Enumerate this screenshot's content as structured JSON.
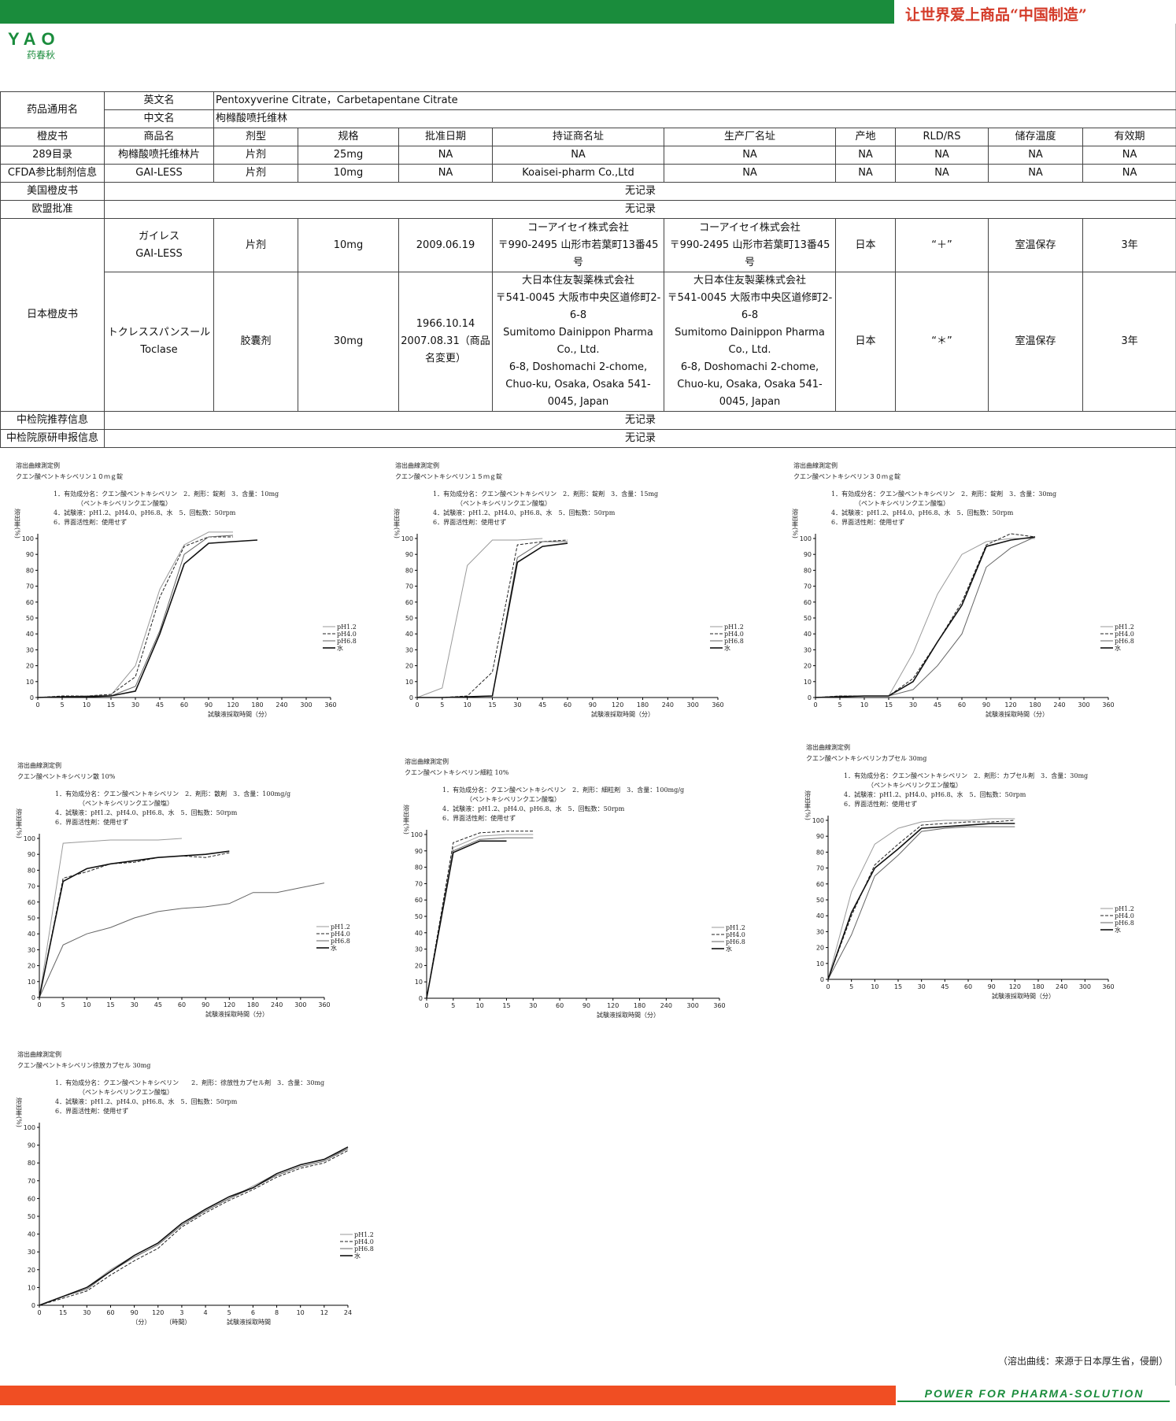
{
  "header": {
    "slogan": "让世界爱上商品“中国制造”",
    "logo_text": "YAO",
    "logo_cn": "药春秋"
  },
  "table": {
    "generic_name_label": "药品通用名",
    "en_label": "英文名",
    "en_value": "Pentoxyverine Citrate，Carbetapentane Citrate",
    "cn_label": "中文名",
    "cn_value": "枸橼酸喷托维林",
    "headers": [
      "橙皮书",
      "商品名",
      "剂型",
      "规格",
      "批准日期",
      "持证商名址",
      "生产厂名址",
      "产地",
      "RLD/RS",
      "储存温度",
      "有效期"
    ],
    "row_289": [
      "289目录",
      "枸橼酸喷托维林片",
      "片剂",
      "25mg",
      "NA",
      "NA",
      "NA",
      "NA",
      "NA",
      "NA",
      "NA"
    ],
    "row_cfda": [
      "CFDA参比制剂信息",
      "GAI-LESS",
      "片剂",
      "10mg",
      "NA",
      "Koaisei-pharm Co.,Ltd",
      "NA",
      "NA",
      "NA",
      "NA",
      "NA"
    ],
    "us_label": "美国橙皮书",
    "us_value": "无记录",
    "eu_label": "欧盟批准",
    "eu_value": "无记录",
    "jp_label": "日本橙皮书",
    "jp_row1": {
      "name": "ガイレス\nGAI-LESS",
      "form": "片剂",
      "spec": "10mg",
      "date": "2009.06.19",
      "holder": "コーアイセイ株式会社\n〒990-2495 山形市若葉町13番45号",
      "maker": "コーアイセイ株式会社\n〒990-2495 山形市若葉町13番45号",
      "origin": "日本",
      "rld": "“＋”",
      "storage": "室温保存",
      "expiry": "3年"
    },
    "jp_row2": {
      "name": "トクレススパンスール\nToclase",
      "form": "胶囊剂",
      "spec": "30mg",
      "date": "1966.10.14\n2007.08.31（商品名変更）",
      "holder": "大日本住友製薬株式会社\n〒541-0045 大阪市中央区道修町2-6-8\nSumitomo Dainippon Pharma Co., Ltd.\n6-8, Doshomachi 2-chome, Chuo-ku, Osaka, Osaka 541-0045, Japan",
      "maker": "大日本住友製薬株式会社\n〒541-0045 大阪市中央区道修町2-6-8\nSumitomo Dainippon Pharma Co., Ltd.\n6-8, Doshomachi 2-chome, Chuo-ku, Osaka, Osaka 541-0045, Japan",
      "origin": "日本",
      "rld": "“＊”",
      "storage": "室温保存",
      "expiry": "3年"
    },
    "nifdc_rec_label": "中检院推荐信息",
    "nifdc_rec_value": "无记录",
    "nifdc_rd_label": "中检院原研申报信息",
    "nifdc_rd_value": "无记录"
  },
  "footnote": "（溶出曲线：来源于日本厚生省，侵删）",
  "footer_tag": "POWER FOR PHARMA-SOLUTION",
  "colors": {
    "green": "#1a8c3c",
    "orange": "#f04e23",
    "slogan_red": "#d43c2a"
  },
  "chart_data": [
    {
      "type": "line",
      "title": "溶出曲線測定例",
      "subtitle": "クエン酸ペントキシベリン１０ｍｇ錠",
      "notes": [
        "1．有効成分名：クエン酸ペントキシベリン　2．剤形：錠剤　3．含量：10mg",
        "（ペントキシベリンクエン酸塩）",
        "4．試験液：pH1.2、pH4.0、pH6.8、水　5．回転数：50rpm",
        "6．界面活性剤：使用せず"
      ],
      "ylabel": "溶出率(%)",
      "xlabel": "試験液採取時間（分）",
      "x": [
        "0",
        "5",
        "10",
        "15",
        "30",
        "45",
        "60",
        "90",
        "120",
        "180",
        "240",
        "300",
        "360"
      ],
      "yticks": [
        0,
        10,
        20,
        30,
        40,
        50,
        60,
        70,
        80,
        90,
        100
      ],
      "series": [
        {
          "name": "pH1.2",
          "values": [
            0,
            0.5,
            1,
            1.5,
            20,
            68,
            96,
            104,
            104,
            null,
            null,
            null,
            null
          ]
        },
        {
          "name": "pH4.0",
          "values": [
            0,
            1,
            1,
            2,
            13,
            63,
            95,
            101,
            101,
            null,
            null,
            null,
            null
          ]
        },
        {
          "name": "pH6.8",
          "values": [
            0,
            0.5,
            1,
            1,
            7,
            42,
            90,
            101,
            102,
            null,
            null,
            null,
            null
          ]
        },
        {
          "name": "水",
          "values": [
            0,
            0.5,
            0.5,
            1,
            4,
            40,
            84,
            97,
            98,
            99,
            null,
            null,
            null
          ]
        }
      ]
    },
    {
      "type": "line",
      "title": "溶出曲線測定例",
      "subtitle": "クエン酸ペントキシベリン１５ｍｇ錠",
      "notes": [
        "1．有効成分名：クエン酸ペントキシベリン　2．剤形：錠剤　3．含量：15mg",
        "（ペントキシベリンクエン酸塩）",
        "4．試験液：pH1.2、pH4.0、pH6.8、水　5．回転数：50rpm",
        "6．界面活性剤：使用せず"
      ],
      "ylabel": "溶出率(%)",
      "xlabel": "試験液採取時間（分）",
      "x": [
        "0",
        "5",
        "10",
        "15",
        "30",
        "45",
        "60",
        "90",
        "120",
        "180",
        "240",
        "300",
        "360"
      ],
      "yticks": [
        0,
        10,
        20,
        30,
        40,
        50,
        60,
        70,
        80,
        90,
        100
      ],
      "series": [
        {
          "name": "pH1.2",
          "values": [
            0,
            6,
            83,
            99,
            99,
            100,
            null,
            null,
            null,
            null,
            null,
            null,
            null
          ]
        },
        {
          "name": "pH4.0",
          "values": [
            0,
            0,
            1,
            16,
            96,
            98,
            99,
            null,
            null,
            null,
            null,
            null,
            null
          ]
        },
        {
          "name": "pH6.8",
          "values": [
            0,
            0,
            0.5,
            1,
            88,
            98,
            98,
            null,
            null,
            null,
            null,
            null,
            null
          ]
        },
        {
          "name": "水",
          "values": [
            0,
            0,
            0.5,
            1,
            85,
            95,
            97,
            null,
            null,
            null,
            null,
            null,
            null
          ]
        }
      ]
    },
    {
      "type": "line",
      "title": "溶出曲線測定例",
      "subtitle": "クエン酸ペントキシベリン３０ｍｇ錠",
      "notes": [
        "1．有効成分名：クエン酸ペントキシベリン　2．剤形：錠剤　3．含量：30mg",
        "（ペントキシベリンクエン酸塩）",
        "4．試験液：pH1.2、pH4.0、pH6.8、水　5．回転数：50rpm",
        "6．界面活性剤：使用せず"
      ],
      "ylabel": "溶出率(%)",
      "xlabel": "試験液採取時間（分）",
      "x": [
        "0",
        "5",
        "10",
        "15",
        "30",
        "45",
        "60",
        "90",
        "120",
        "180",
        "240",
        "300",
        "360"
      ],
      "yticks": [
        0,
        10,
        20,
        30,
        40,
        50,
        60,
        70,
        80,
        90,
        100
      ],
      "series": [
        {
          "name": "pH1.2",
          "values": [
            0,
            1,
            1,
            1,
            28,
            65,
            90,
            98,
            100,
            100,
            null,
            null,
            null
          ]
        },
        {
          "name": "pH4.0",
          "values": [
            0,
            1,
            1,
            1,
            12,
            35,
            60,
            96,
            103,
            101,
            null,
            null,
            null
          ]
        },
        {
          "name": "pH6.8",
          "values": [
            0,
            0.5,
            1,
            1,
            5,
            20,
            40,
            82,
            94,
            101,
            null,
            null,
            null
          ]
        },
        {
          "name": "水",
          "values": [
            0,
            0.5,
            1,
            1,
            10,
            35,
            58,
            95,
            99,
            101,
            null,
            null,
            null
          ]
        }
      ]
    },
    {
      "type": "line",
      "title": "溶出曲線測定例",
      "subtitle": "クエン酸ペントキシベリン散 10%",
      "notes": [
        "1．有効成分名：クエン酸ペントキシベリン　2．剤形：散剤　3．含量：100mg/g",
        "（ペントキシベリンクエン酸塩）",
        "4．試験液：pH1.2、pH4.0、pH6.8、水　5．回転数：50rpm",
        "6．界面活性剤：使用せず"
      ],
      "ylabel": "溶出率(%)",
      "xlabel": "試験液採取時間（分）",
      "x": [
        "0",
        "5",
        "10",
        "15",
        "30",
        "45",
        "60",
        "90",
        "120",
        "180",
        "240",
        "300",
        "360"
      ],
      "yticks": [
        0,
        10,
        20,
        30,
        40,
        50,
        60,
        70,
        80,
        90,
        100
      ],
      "series": [
        {
          "name": "pH1.2",
          "values": [
            0,
            97,
            98,
            99,
            99,
            99,
            100,
            null,
            null,
            null,
            null,
            null,
            null
          ]
        },
        {
          "name": "pH4.0",
          "values": [
            0,
            75,
            79,
            84,
            85,
            88,
            89,
            88,
            91,
            null,
            null,
            null,
            null
          ]
        },
        {
          "name": "pH6.8",
          "values": [
            0,
            33,
            40,
            44,
            50,
            54,
            56,
            57,
            59,
            66,
            66,
            69,
            72
          ]
        },
        {
          "name": "水",
          "values": [
            0,
            73,
            81,
            84,
            86,
            88,
            89,
            90,
            92,
            null,
            null,
            null,
            null
          ]
        }
      ]
    },
    {
      "type": "line",
      "title": "溶出曲線測定例",
      "subtitle": "クエン酸ペントキシベリン細粒 10%",
      "notes": [
        "1．有効成分名：クエン酸ペントキシベリン　2．剤形：細粒剤　3．含量：100mg/g",
        "（ペントキシベリンクエン酸塩）",
        "4．試験液：pH1.2、pH4.0、pH6.8、水　5．回転数：50rpm",
        "6．界面活性剤：使用せず"
      ],
      "ylabel": "溶出率(%)",
      "xlabel": "試験液採取時間（分）",
      "x": [
        "0",
        "5",
        "10",
        "15",
        "30",
        "60",
        "90",
        "120",
        "180",
        "240",
        "300",
        "360"
      ],
      "yticks": [
        0,
        10,
        20,
        30,
        40,
        50,
        60,
        70,
        80,
        90,
        100
      ],
      "series": [
        {
          "name": "pH1.2",
          "values": [
            0,
            92,
            99,
            100,
            100,
            null,
            null,
            null,
            null,
            null,
            null,
            null
          ]
        },
        {
          "name": "pH4.0",
          "values": [
            0,
            95,
            101,
            102,
            102,
            null,
            null,
            null,
            null,
            null,
            null,
            null
          ]
        },
        {
          "name": "pH6.8",
          "values": [
            0,
            90,
            97,
            98,
            98,
            null,
            null,
            null,
            null,
            null,
            null,
            null
          ]
        },
        {
          "name": "水",
          "values": [
            0,
            89,
            96,
            96,
            null,
            null,
            null,
            null,
            null,
            null,
            null,
            null
          ]
        }
      ]
    },
    {
      "type": "line",
      "title": "溶出曲線測定例",
      "subtitle": "クエン酸ペントキシベリンカプセル 30mg",
      "notes": [
        "1．有効成分名：クエン酸ペントキシベリン　2．剤形：カプセル剤　3．含量：30mg",
        "（ペントキシベリンクエン酸塩）",
        "4．試験液：pH1.2、pH4.0、pH6.8、水　5．回転数：50rpm",
        "6．界面活性剤：使用せず"
      ],
      "ylabel": "溶出率(%)",
      "xlabel": "試験液採取時間（分）",
      "x": [
        "0",
        "5",
        "10",
        "15",
        "30",
        "45",
        "60",
        "90",
        "120",
        "180",
        "240",
        "300",
        "360"
      ],
      "yticks": [
        0,
        10,
        20,
        30,
        40,
        50,
        60,
        70,
        80,
        90,
        100
      ],
      "series": [
        {
          "name": "pH1.2",
          "values": [
            0,
            55,
            85,
            95,
            99,
            100,
            100,
            101,
            101,
            null,
            null,
            null,
            null
          ]
        },
        {
          "name": "pH4.0",
          "values": [
            0,
            40,
            72,
            85,
            97,
            98,
            99,
            99,
            100,
            null,
            null,
            null,
            null
          ]
        },
        {
          "name": "pH6.8",
          "values": [
            0,
            28,
            65,
            78,
            93,
            95,
            96,
            96,
            96,
            null,
            null,
            null,
            null
          ]
        },
        {
          "name": "水",
          "values": [
            0,
            42,
            70,
            82,
            95,
            96,
            97,
            98,
            98,
            null,
            null,
            null,
            null
          ]
        }
      ]
    },
    {
      "type": "line",
      "title": "溶出曲線測定例",
      "subtitle": "クエン酸ペントキシベリン徐放カプセル 30mg",
      "notes": [
        "1．有効成分名：クエン酸ペントキシベリン　　2．剤形：徐放性カプセル剤　3．含量：30mg",
        "（ペントキシベリンクエン酸塩）",
        "4．試験液：pH1.2、pH4.0、pH6.8、水　5．回転数：50rpm",
        "6．界面活性剤：使用せず"
      ],
      "ylabel": "溶出率(%)",
      "xlabel": "試験液採取時間",
      "x": [
        "0",
        "15",
        "30",
        "60",
        "90",
        "120",
        "3",
        "4",
        "5",
        "6",
        "8",
        "10",
        "12",
        "24"
      ],
      "x_unit_labels": [
        "（分）",
        "（時間）"
      ],
      "yticks": [
        0,
        10,
        20,
        30,
        40,
        50,
        60,
        70,
        80,
        90,
        100
      ],
      "series": [
        {
          "name": "pH1.2",
          "values": [
            0,
            5,
            10,
            20,
            28,
            35,
            46,
            53,
            60,
            67,
            74,
            79,
            82,
            88
          ]
        },
        {
          "name": "pH4.0",
          "values": [
            0,
            4,
            8,
            17,
            25,
            32,
            44,
            52,
            59,
            65,
            72,
            77,
            80,
            87
          ]
        },
        {
          "name": "pH6.8",
          "values": [
            0,
            5,
            9,
            19,
            27,
            34,
            45,
            53,
            60,
            66,
            73,
            78,
            81,
            88
          ]
        },
        {
          "name": "水",
          "values": [
            0,
            5,
            10,
            19,
            28,
            35,
            46,
            54,
            61,
            66,
            74,
            79,
            82,
            89
          ]
        }
      ]
    }
  ]
}
